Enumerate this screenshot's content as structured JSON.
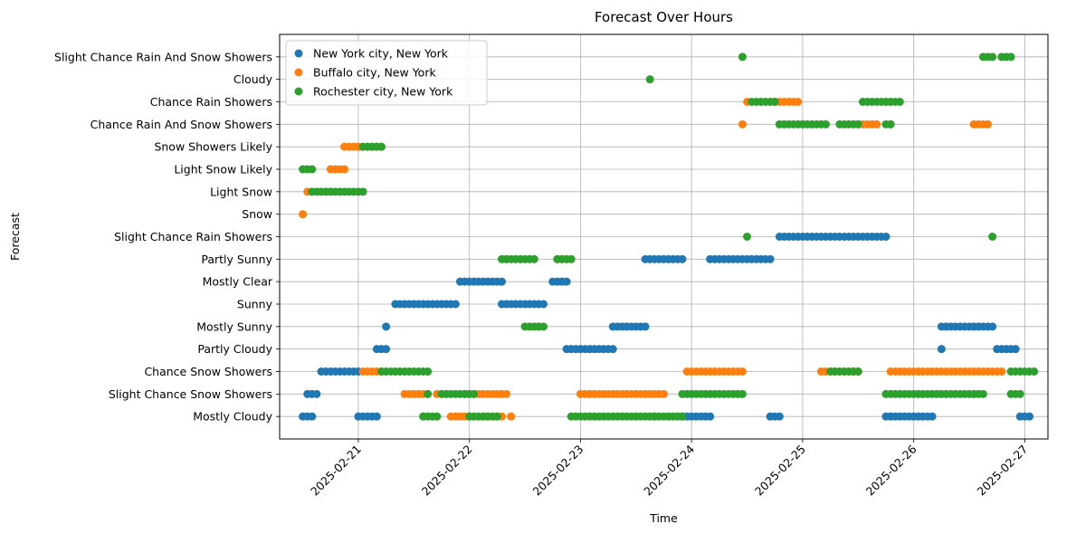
{
  "chart_data": {
    "type": "scatter",
    "title": "Forecast Over Hours",
    "xlabel": "Time",
    "ylabel": "Forecast",
    "grid": true,
    "legend_position": "top-left",
    "x_ticks": [
      "2025-02-21",
      "2025-02-22",
      "2025-02-23",
      "2025-02-24",
      "2025-02-25",
      "2025-02-26",
      "2025-02-27"
    ],
    "xlim": [
      "2025-02-20T07:00",
      "2025-02-27T05:00"
    ],
    "categories": [
      "Mostly Cloudy",
      "Slight Chance Snow Showers",
      "Chance Snow Showers",
      "Partly Cloudy",
      "Mostly Sunny",
      "Sunny",
      "Mostly Clear",
      "Partly Sunny",
      "Slight Chance Rain Showers",
      "Snow",
      "Light Snow",
      "Light Snow Likely",
      "Snow Showers Likely",
      "Chance Rain And Snow Showers",
      "Chance Rain Showers",
      "Cloudy",
      "Slight Chance Rain And Snow Showers"
    ],
    "series": [
      {
        "name": "New York city, New York",
        "color": "#1f77b4",
        "runs": [
          [
            "2025-02-20T12:00",
            "2025-02-20T14:00",
            "Mostly Cloudy"
          ],
          [
            "2025-02-20T13:00",
            "2025-02-20T15:00",
            "Slight Chance Snow Showers"
          ],
          [
            "2025-02-20T16:00",
            "2025-02-21T00:00",
            "Chance Snow Showers"
          ],
          [
            "2025-02-21T00:00",
            "2025-02-21T04:00",
            "Mostly Cloudy"
          ],
          [
            "2025-02-21T04:00",
            "2025-02-21T06:00",
            "Partly Cloudy"
          ],
          [
            "2025-02-21T06:00",
            "2025-02-21T06:00",
            "Mostly Sunny"
          ],
          [
            "2025-02-21T08:00",
            "2025-02-21T21:00",
            "Sunny"
          ],
          [
            "2025-02-21T22:00",
            "2025-02-22T07:00",
            "Mostly Clear"
          ],
          [
            "2025-02-22T07:00",
            "2025-02-22T16:00",
            "Sunny"
          ],
          [
            "2025-02-22T18:00",
            "2025-02-22T21:00",
            "Mostly Clear"
          ],
          [
            "2025-02-22T21:00",
            "2025-02-23T07:00",
            "Partly Cloudy"
          ],
          [
            "2025-02-23T07:00",
            "2025-02-23T14:00",
            "Mostly Sunny"
          ],
          [
            "2025-02-23T14:00",
            "2025-02-23T22:00",
            "Partly Sunny"
          ],
          [
            "2025-02-23T22:00",
            "2025-02-24T04:00",
            "Mostly Cloudy"
          ],
          [
            "2025-02-24T04:00",
            "2025-02-24T17:00",
            "Partly Sunny"
          ],
          [
            "2025-02-24T17:00",
            "2025-02-24T19:00",
            "Mostly Cloudy"
          ],
          [
            "2025-02-24T19:00",
            "2025-02-25T18:00",
            "Slight Chance Rain Showers"
          ],
          [
            "2025-02-25T18:00",
            "2025-02-26T04:00",
            "Mostly Cloudy"
          ],
          [
            "2025-02-26T06:00",
            "2025-02-26T06:00",
            "Partly Cloudy"
          ],
          [
            "2025-02-26T06:00",
            "2025-02-26T17:00",
            "Mostly Sunny"
          ],
          [
            "2025-02-26T18:00",
            "2025-02-26T22:00",
            "Partly Cloudy"
          ],
          [
            "2025-02-26T23:00",
            "2025-02-27T01:00",
            "Mostly Cloudy"
          ]
        ]
      },
      {
        "name": "Buffalo city, New York",
        "color": "#ff7f0e",
        "runs": [
          [
            "2025-02-20T12:00",
            "2025-02-20T12:00",
            "Snow"
          ],
          [
            "2025-02-20T13:00",
            "2025-02-20T13:00",
            "Light Snow"
          ],
          [
            "2025-02-20T18:00",
            "2025-02-20T21:00",
            "Light Snow Likely"
          ],
          [
            "2025-02-20T21:00",
            "2025-02-21T05:00",
            "Snow Showers Likely"
          ],
          [
            "2025-02-21T01:00",
            "2025-02-21T05:00",
            "Chance Snow Showers"
          ],
          [
            "2025-02-21T10:00",
            "2025-02-21T15:00",
            "Slight Chance Snow Showers"
          ],
          [
            "2025-02-21T17:00",
            "2025-02-21T17:00",
            "Slight Chance Snow Showers"
          ],
          [
            "2025-02-21T23:00",
            "2025-02-22T08:00",
            "Slight Chance Snow Showers"
          ],
          [
            "2025-02-21T20:00",
            "2025-02-22T00:00",
            "Mostly Cloudy"
          ],
          [
            "2025-02-22T09:00",
            "2025-02-22T09:00",
            "Mostly Cloudy"
          ],
          [
            "2025-02-22T03:00",
            "2025-02-22T07:00",
            "Mostly Cloudy"
          ],
          [
            "2025-02-22T19:00",
            "2025-02-22T21:00",
            "Partly Sunny"
          ],
          [
            "2025-02-23T00:00",
            "2025-02-23T18:00",
            "Slight Chance Snow Showers"
          ],
          [
            "2025-02-23T23:00",
            "2025-02-24T11:00",
            "Chance Snow Showers"
          ],
          [
            "2025-02-24T11:00",
            "2025-02-24T11:00",
            "Chance Rain And Snow Showers"
          ],
          [
            "2025-02-24T12:00",
            "2025-02-24T12:00",
            "Chance Rain Showers"
          ],
          [
            "2025-02-24T18:00",
            "2025-02-24T23:00",
            "Chance Rain Showers"
          ],
          [
            "2025-02-25T04:00",
            "2025-02-25T12:00",
            "Chance Snow Showers"
          ],
          [
            "2025-02-25T12:00",
            "2025-02-25T16:00",
            "Chance Rain And Snow Showers"
          ],
          [
            "2025-02-25T19:00",
            "2025-02-25T19:00",
            "Chance Rain And Snow Showers"
          ],
          [
            "2025-02-25T19:00",
            "2025-02-26T16:00",
            "Chance Snow Showers"
          ],
          [
            "2025-02-26T13:00",
            "2025-02-26T16:00",
            "Chance Rain And Snow Showers"
          ],
          [
            "2025-02-26T17:00",
            "2025-02-26T19:00",
            "Chance Snow Showers"
          ]
        ]
      },
      {
        "name": "Rochester city, New York",
        "color": "#2ca02c",
        "runs": [
          [
            "2025-02-20T12:00",
            "2025-02-20T14:00",
            "Light Snow Likely"
          ],
          [
            "2025-02-20T14:00",
            "2025-02-21T01:00",
            "Light Snow"
          ],
          [
            "2025-02-21T01:00",
            "2025-02-21T05:00",
            "Snow Showers Likely"
          ],
          [
            "2025-02-21T05:00",
            "2025-02-21T15:00",
            "Chance Snow Showers"
          ],
          [
            "2025-02-21T15:00",
            "2025-02-21T15:00",
            "Slight Chance Snow Showers"
          ],
          [
            "2025-02-21T18:00",
            "2025-02-22T01:00",
            "Slight Chance Snow Showers"
          ],
          [
            "2025-02-21T14:00",
            "2025-02-21T17:00",
            "Mostly Cloudy"
          ],
          [
            "2025-02-22T00:00",
            "2025-02-22T06:00",
            "Mostly Cloudy"
          ],
          [
            "2025-02-22T07:00",
            "2025-02-22T14:00",
            "Partly Sunny"
          ],
          [
            "2025-02-22T12:00",
            "2025-02-22T16:00",
            "Mostly Sunny"
          ],
          [
            "2025-02-22T19:00",
            "2025-02-22T22:00",
            "Partly Sunny"
          ],
          [
            "2025-02-22T22:00",
            "2025-02-23T16:00",
            "Mostly Cloudy"
          ],
          [
            "2025-02-23T15:00",
            "2025-02-23T15:00",
            "Cloudy"
          ],
          [
            "2025-02-23T16:00",
            "2025-02-23T22:00",
            "Mostly Cloudy"
          ],
          [
            "2025-02-23T22:00",
            "2025-02-24T11:00",
            "Slight Chance Snow Showers"
          ],
          [
            "2025-02-24T11:00",
            "2025-02-24T11:00",
            "Slight Chance Rain And Snow Showers"
          ],
          [
            "2025-02-24T12:00",
            "2025-02-24T12:00",
            "Slight Chance Rain Showers"
          ],
          [
            "2025-02-24T13:00",
            "2025-02-24T18:00",
            "Chance Rain Showers"
          ],
          [
            "2025-02-24T19:00",
            "2025-02-25T05:00",
            "Chance Rain And Snow Showers"
          ],
          [
            "2025-02-25T06:00",
            "2025-02-25T12:00",
            "Chance Snow Showers"
          ],
          [
            "2025-02-25T08:00",
            "2025-02-25T12:00",
            "Chance Rain And Snow Showers"
          ],
          [
            "2025-02-25T13:00",
            "2025-02-25T21:00",
            "Chance Rain Showers"
          ],
          [
            "2025-02-25T18:00",
            "2025-02-25T19:00",
            "Chance Rain And Snow Showers"
          ],
          [
            "2025-02-25T18:00",
            "2025-02-26T15:00",
            "Slight Chance Snow Showers"
          ],
          [
            "2025-02-26T15:00",
            "2025-02-26T17:00",
            "Slight Chance Rain And Snow Showers"
          ],
          [
            "2025-02-26T17:00",
            "2025-02-26T17:00",
            "Slight Chance Rain Showers"
          ],
          [
            "2025-02-26T19:00",
            "2025-02-26T21:00",
            "Slight Chance Rain And Snow Showers"
          ],
          [
            "2025-02-26T21:00",
            "2025-02-26T23:00",
            "Slight Chance Snow Showers"
          ],
          [
            "2025-02-26T21:00",
            "2025-02-27T02:00",
            "Chance Snow Showers"
          ]
        ]
      }
    ]
  }
}
